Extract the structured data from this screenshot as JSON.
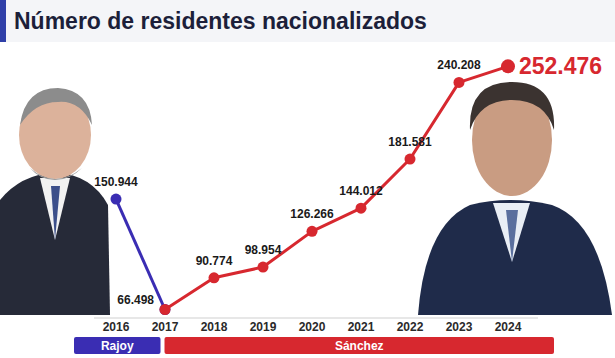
{
  "chart_data": {
    "type": "line",
    "title": "Número de residentes nacionalizados",
    "categories": [
      "2016",
      "2017",
      "2018",
      "2019",
      "2020",
      "2021",
      "2022",
      "2023",
      "2024"
    ],
    "series": [
      {
        "name": "Rajoy",
        "color": "#3a2db3",
        "values": [
          150944,
          66498,
          null,
          null,
          null,
          null,
          null,
          null,
          null
        ],
        "value_labels": [
          "150.944",
          "66.498",
          null,
          null,
          null,
          null,
          null,
          null,
          null
        ]
      },
      {
        "name": "Sánchez",
        "color": "#d7282f",
        "values": [
          null,
          66498,
          90774,
          98954,
          126266,
          144012,
          181581,
          240208,
          252476
        ],
        "value_labels": [
          null,
          null,
          "90.774",
          "98.954",
          "126.266",
          "144.012",
          "181.581",
          "240.208",
          "252.476"
        ]
      }
    ],
    "ylim": [
      60000,
      265000
    ],
    "data_labels": true,
    "tick_labels": "x",
    "legend": "bottom",
    "marker": "circle",
    "line_style": "solid"
  }
}
